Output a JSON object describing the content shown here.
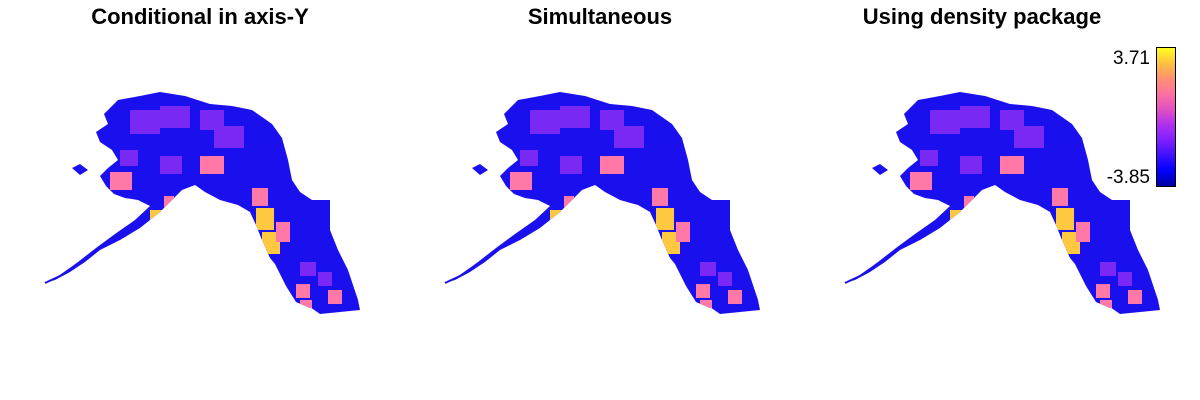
{
  "panels": [
    {
      "title": "Conditional in axis-Y"
    },
    {
      "title": "Simultaneous"
    },
    {
      "title": "Using density package"
    }
  ],
  "legend": {
    "max_label": "3.71",
    "min_label": "-3.85",
    "max_value": 3.71,
    "min_value": -3.85,
    "colors": [
      "#0000a0",
      "#0000ff",
      "#4010ff",
      "#8020ff",
      "#b030f0",
      "#e050c0",
      "#ff70a0",
      "#ff9070",
      "#ffc040",
      "#ffff20"
    ]
  },
  "colors": {
    "region_low": "#1a10ee",
    "region_mid": "#7a28f4",
    "region_high": "#ff78a8",
    "hot": "#ffc840",
    "background": "#ffffff"
  }
}
